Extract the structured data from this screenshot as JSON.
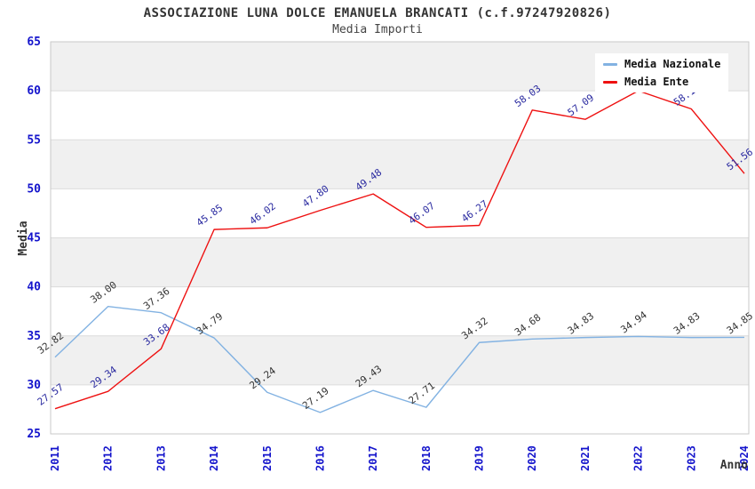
{
  "chart_data": {
    "type": "line",
    "title": "ASSOCIAZIONE LUNA DOLCE EMANUELA BRANCATI (c.f.97247920826)",
    "subtitle": "Media Importi",
    "xlabel": "Anno",
    "ylabel": "Media",
    "x": [
      "2011",
      "2012",
      "2013",
      "2014",
      "2015",
      "2016",
      "2017",
      "2018",
      "2019",
      "2020",
      "2021",
      "2022",
      "2023",
      "2024"
    ],
    "ylim": [
      25,
      65
    ],
    "ytick_step": 5,
    "yticks": [
      25,
      30,
      35,
      40,
      45,
      50,
      55,
      60,
      65
    ],
    "grid": "horizontal-alternating-bands",
    "legend_position": "top-right",
    "series": [
      {
        "name": "Media Nazionale",
        "color": "#82B2E2",
        "label_color": "#333333",
        "values": [
          32.82,
          38.0,
          37.36,
          34.79,
          29.24,
          27.19,
          29.43,
          27.71,
          34.32,
          34.68,
          34.83,
          34.94,
          34.83,
          34.85
        ]
      },
      {
        "name": "Media Ente",
        "color": "#EE1111",
        "label_color": "#2A2AA0",
        "values": [
          27.57,
          29.34,
          33.68,
          45.85,
          46.02,
          47.8,
          49.48,
          46.07,
          46.27,
          58.03,
          57.09,
          60.0,
          58.15,
          51.56
        ],
        "hidden_label_indices": [
          11
        ]
      }
    ]
  },
  "colors": {
    "band": "#F0F0F0",
    "band_alt": "#FFFFFF",
    "grid": "#DCDCDC",
    "border": "#C9C9C9",
    "tick": "#1414CC",
    "axis_title": "#333333"
  }
}
